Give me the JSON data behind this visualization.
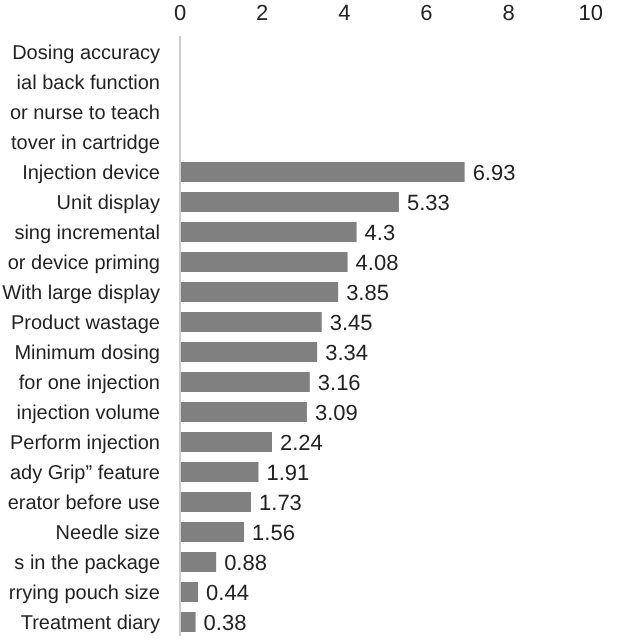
{
  "chart_data": {
    "type": "bar",
    "orientation": "horizontal",
    "categories": [
      "Dosing accuracy",
      "ial back function",
      "or nurse to teach",
      "tover in cartridge",
      "Injection device",
      "Unit display",
      "sing incremental",
      "or device priming",
      "With large display",
      "Product wastage",
      "Minimum dosing",
      "for one injection",
      "injection volume",
      "Perform injection",
      "ady Grip” feature",
      "erator before use",
      "Needle size",
      "s in the package",
      "rrying pouch size",
      "Treatment diary"
    ],
    "values": [
      null,
      null,
      null,
      null,
      6.93,
      5.33,
      4.3,
      4.08,
      3.85,
      3.45,
      3.34,
      3.16,
      3.09,
      2.24,
      1.91,
      1.73,
      1.56,
      0.88,
      0.44,
      0.38
    ],
    "color": "#808080",
    "xlim": [
      0,
      11.2
    ],
    "xticks": [
      0,
      2,
      4,
      6,
      8,
      10
    ],
    "data_labels": true,
    "grid": false,
    "legend": false
  }
}
